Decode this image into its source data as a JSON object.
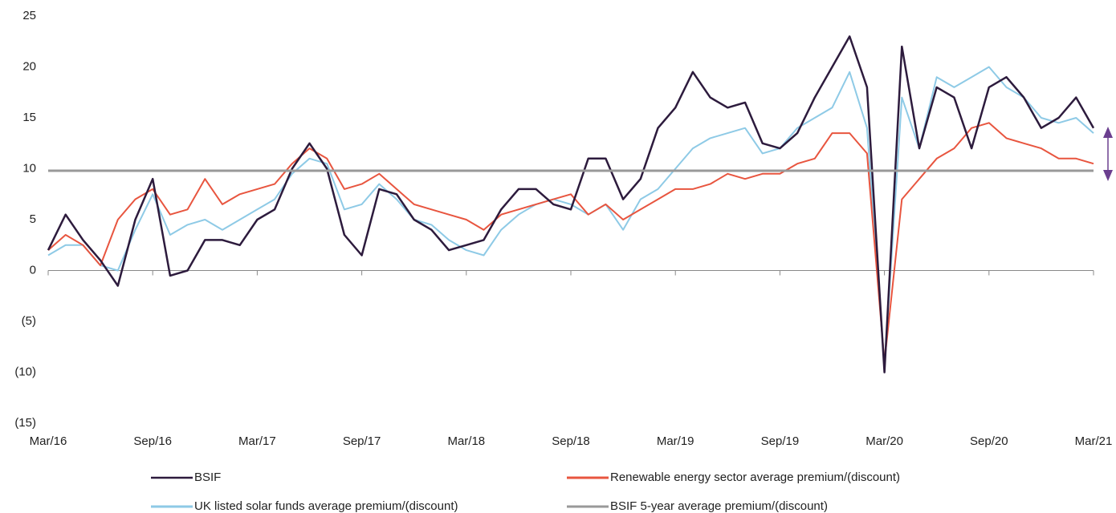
{
  "chart_data": {
    "type": "line",
    "x": [
      "2016-03",
      "2016-04",
      "2016-05",
      "2016-06",
      "2016-07",
      "2016-08",
      "2016-09",
      "2016-10",
      "2016-11",
      "2016-12",
      "2017-01",
      "2017-02",
      "2017-03",
      "2017-04",
      "2017-05",
      "2017-06",
      "2017-07",
      "2017-08",
      "2017-09",
      "2017-10",
      "2017-11",
      "2017-12",
      "2018-01",
      "2018-02",
      "2018-03",
      "2018-04",
      "2018-05",
      "2018-06",
      "2018-07",
      "2018-08",
      "2018-09",
      "2018-10",
      "2018-11",
      "2018-12",
      "2019-01",
      "2019-02",
      "2019-03",
      "2019-04",
      "2019-05",
      "2019-06",
      "2019-07",
      "2019-08",
      "2019-09",
      "2019-10",
      "2019-11",
      "2019-12",
      "2020-01",
      "2020-02",
      "2020-03",
      "2020-04",
      "2020-05",
      "2020-06",
      "2020-07",
      "2020-08",
      "2020-09",
      "2020-10",
      "2020-11",
      "2020-12",
      "2021-01",
      "2021-02",
      "2021-03"
    ],
    "series": [
      {
        "name": "BSIF",
        "color": "#2d1b3d",
        "values": [
          2,
          5.5,
          3,
          1,
          -1.5,
          5,
          9,
          -0.5,
          0,
          3,
          3,
          2.5,
          5,
          6,
          10,
          12.5,
          10,
          3.5,
          1.5,
          8,
          7.5,
          5,
          4,
          2,
          2.5,
          3,
          6,
          8,
          8,
          6.5,
          6,
          11,
          11,
          7,
          9,
          14,
          16,
          19.5,
          17,
          16,
          16.5,
          12.5,
          12,
          13.5,
          17,
          20,
          23,
          18,
          -10,
          22,
          12,
          18,
          17,
          12,
          18,
          19,
          17,
          14,
          15,
          17,
          14
        ]
      },
      {
        "name": "Renewable energy sector average premium/(discount)",
        "color": "#e8553f",
        "values": [
          2,
          3.5,
          2.5,
          0.5,
          5,
          7,
          8,
          5.5,
          6,
          9,
          6.5,
          7.5,
          8,
          8.5,
          10.5,
          12,
          11,
          8,
          8.5,
          9.5,
          8,
          6.5,
          6,
          5.5,
          5,
          4,
          5.5,
          6,
          6.5,
          7,
          7.5,
          5.5,
          6.5,
          5,
          6,
          7,
          8,
          8,
          8.5,
          9.5,
          9,
          9.5,
          9.5,
          10.5,
          11,
          13.5,
          13.5,
          11.5,
          -9,
          7,
          9,
          11,
          12,
          14,
          14.5,
          13,
          12.5,
          12,
          11,
          11,
          10.5
        ]
      },
      {
        "name": "UK listed solar funds average premium/(discount)",
        "color": "#8ecae6",
        "values": [
          1.5,
          2.5,
          2.5,
          0.5,
          0,
          4,
          7.5,
          3.5,
          4.5,
          5,
          4,
          5,
          6,
          7,
          9.5,
          11,
          10.5,
          6,
          6.5,
          8.5,
          7,
          5,
          4.5,
          3,
          2,
          1.5,
          4,
          5.5,
          6.5,
          7,
          6.5,
          5.5,
          6.5,
          4,
          7,
          8,
          10,
          12,
          13,
          13.5,
          14,
          11.5,
          12,
          14,
          15,
          16,
          19.5,
          14,
          -9.5,
          17,
          12,
          19,
          18,
          19,
          20,
          18,
          17,
          15,
          14.5,
          15,
          13.5
        ]
      }
    ],
    "reference_lines": [
      {
        "name": "BSIF 5-year average premium/(discount)",
        "color": "#999999",
        "value": 9.8
      }
    ],
    "xlim": [
      "2016-03",
      "2021-03"
    ],
    "xticks": [
      {
        "value": "2016-03",
        "label": "Mar/16"
      },
      {
        "value": "2016-09",
        "label": "Sep/16"
      },
      {
        "value": "2017-03",
        "label": "Mar/17"
      },
      {
        "value": "2017-09",
        "label": "Sep/17"
      },
      {
        "value": "2018-03",
        "label": "Mar/18"
      },
      {
        "value": "2018-09",
        "label": "Sep/18"
      },
      {
        "value": "2019-03",
        "label": "Mar/19"
      },
      {
        "value": "2019-09",
        "label": "Sep/19"
      },
      {
        "value": "2020-03",
        "label": "Mar/20"
      },
      {
        "value": "2020-09",
        "label": "Sep/20"
      },
      {
        "value": "2021-03",
        "label": "Mar/21"
      }
    ],
    "ylim": [
      -15,
      25
    ],
    "yticks": [
      25,
      20,
      15,
      10,
      5,
      0,
      {
        "value": -5,
        "label": "(5)"
      },
      {
        "value": -10,
        "label": "(10)"
      },
      {
        "value": -15,
        "label": "(15)"
      }
    ],
    "grid": false
  }
}
